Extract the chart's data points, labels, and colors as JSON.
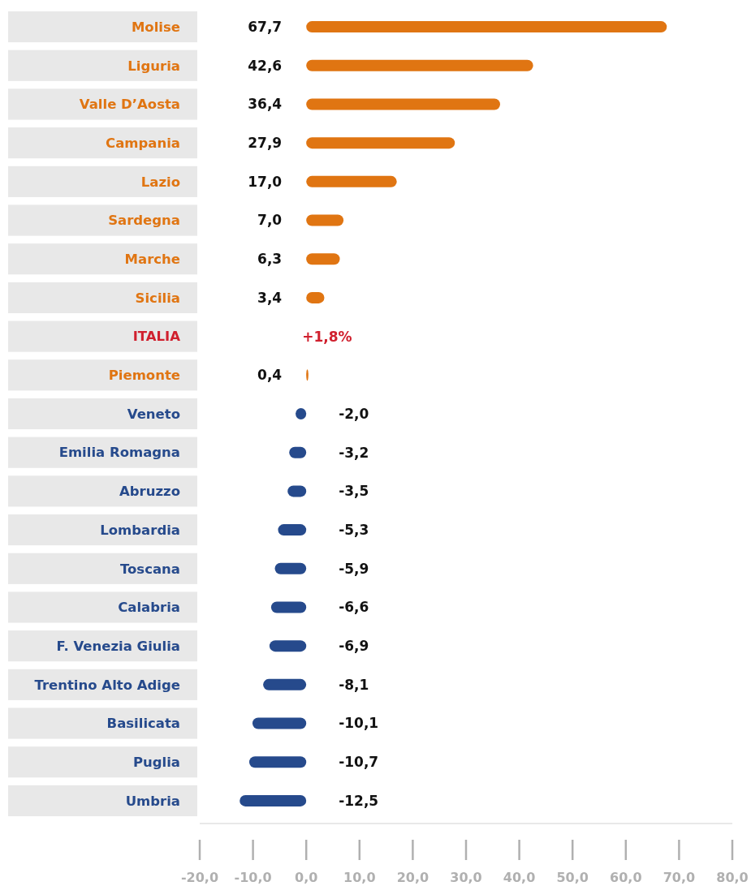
{
  "chart_data": {
    "type": "bar",
    "orientation": "horizontal",
    "categories": [
      "Molise",
      "Liguria",
      "Valle D’Aosta",
      "Campania",
      "Lazio",
      "Sardegna",
      "Marche",
      "Sicilia",
      "ITALIA",
      "Piemonte",
      "Veneto",
      "Emilia Romagna",
      "Abruzzo",
      "Lombardia",
      "Toscana",
      "Calabria",
      "F. Venezia Giulia",
      "Trentino Alto Adige",
      "Basilicata",
      "Puglia",
      "Umbria"
    ],
    "values": [
      67.7,
      42.6,
      36.4,
      27.9,
      17.0,
      7.0,
      6.3,
      3.4,
      null,
      0.4,
      -2.0,
      -3.2,
      -3.5,
      -5.3,
      -5.9,
      -6.6,
      -6.9,
      -8.1,
      -10.1,
      -10.7,
      -12.5
    ],
    "colors": [
      "#e07512",
      "#e07512",
      "#e07512",
      "#e07512",
      "#e07512",
      "#e07512",
      "#e07512",
      "#e07512",
      "#d0202e",
      "#e07512",
      "#264a8c",
      "#264a8c",
      "#264a8c",
      "#264a8c",
      "#264a8c",
      "#264a8c",
      "#264a8c",
      "#264a8c",
      "#264a8c",
      "#264a8c",
      "#264a8c"
    ],
    "value_labels": [
      "67,7",
      "42,6",
      "36,4",
      "27,9",
      "17,0",
      "7,0",
      "6,3",
      "3,4",
      "+1,8%",
      "0,4",
      "-2,0",
      "-3,2",
      "-3,5",
      "-5,3",
      "-5,9",
      "-6,6",
      "-6,9",
      "-8,1",
      "-10,1",
      "-10,7",
      "-12,5"
    ],
    "xlim": [
      -20,
      80
    ],
    "xticks": [
      {
        "value": -20,
        "label": "-20,0"
      },
      {
        "value": -10,
        "label": "-10,0"
      },
      {
        "value": 0,
        "label": "0,0"
      },
      {
        "value": 10,
        "label": "10,0"
      },
      {
        "value": 20,
        "label": "20,0"
      },
      {
        "value": 30,
        "label": "30,0"
      },
      {
        "value": 40,
        "label": "40,0"
      },
      {
        "value": 50,
        "label": "50,0"
      },
      {
        "value": 60,
        "label": "60,0"
      },
      {
        "value": 70,
        "label": "70,0"
      },
      {
        "value": 80,
        "label": "80,0"
      }
    ],
    "grid": false
  }
}
